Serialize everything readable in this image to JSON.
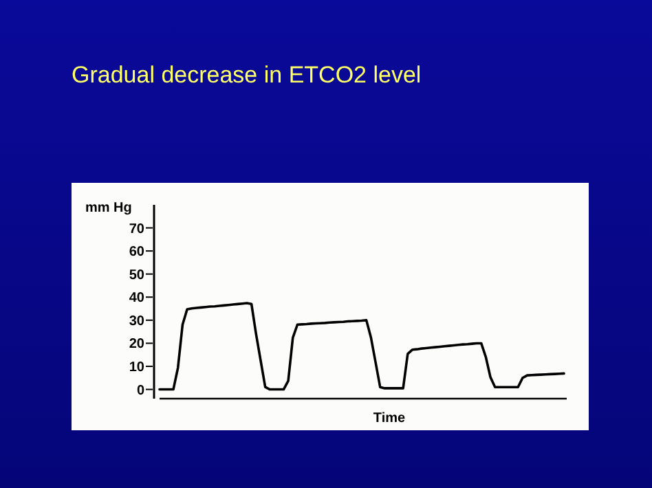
{
  "chart_data": {
    "type": "line",
    "title": "Gradual decrease in ETCO2 level",
    "xlabel": "Time",
    "ylabel": "mm Hg",
    "categories": [
      null,
      null,
      null,
      null,
      null,
      null,
      null,
      null,
      null,
      null,
      null,
      null,
      null,
      null,
      null,
      null,
      null,
      null,
      null,
      null,
      null,
      null,
      null,
      null,
      null,
      null,
      null,
      null,
      null,
      null,
      null,
      null,
      null,
      null,
      null,
      null,
      null,
      null,
      null,
      null,
      null,
      null,
      null,
      null,
      null,
      null,
      null,
      null,
      null,
      null,
      null,
      null,
      null,
      null,
      null,
      null,
      null,
      null,
      null,
      null,
      null,
      null,
      null,
      null,
      null,
      null,
      null,
      null,
      null,
      null,
      null,
      null,
      null,
      null,
      null,
      null,
      null,
      null,
      null,
      null,
      null,
      null,
      null,
      null,
      null,
      null,
      null,
      null,
      null
    ],
    "series": [
      {
        "color": "#000000",
        "values": [
          0,
          0,
          0,
          0,
          9.4,
          28,
          34.7,
          35.1,
          35.3,
          35.5,
          35.7,
          35.9,
          36,
          36.2,
          36.4,
          36.6,
          36.8,
          37,
          37.2,
          37.4,
          37,
          24,
          12.5,
          1,
          0,
          0,
          0,
          0,
          3.7,
          22.4,
          28.1,
          28.2,
          28.3,
          28.5,
          28.6,
          28.7,
          28.8,
          29,
          29.1,
          29.2,
          29.3,
          29.5,
          29.6,
          29.7,
          29.8,
          30,
          22.5,
          11.8,
          1,
          0.5,
          0.5,
          0.5,
          0.5,
          0.5,
          15.4,
          17.2,
          17.4,
          17.7,
          17.9,
          18.1,
          18.3,
          18.5,
          18.7,
          18.9,
          19.1,
          19.3,
          19.5,
          19.6,
          19.8,
          20,
          20,
          14,
          5.3,
          1,
          1,
          1,
          1,
          1,
          1,
          5,
          6.1,
          6.2,
          6.3,
          6.4,
          6.5,
          6.6,
          6.7,
          6.8,
          6.9
        ]
      }
    ],
    "ylim": [
      -4,
      80
    ],
    "yticks": [
      0,
      10,
      20,
      30,
      40,
      50,
      60,
      70
    ],
    "tick_labels": "y"
  }
}
